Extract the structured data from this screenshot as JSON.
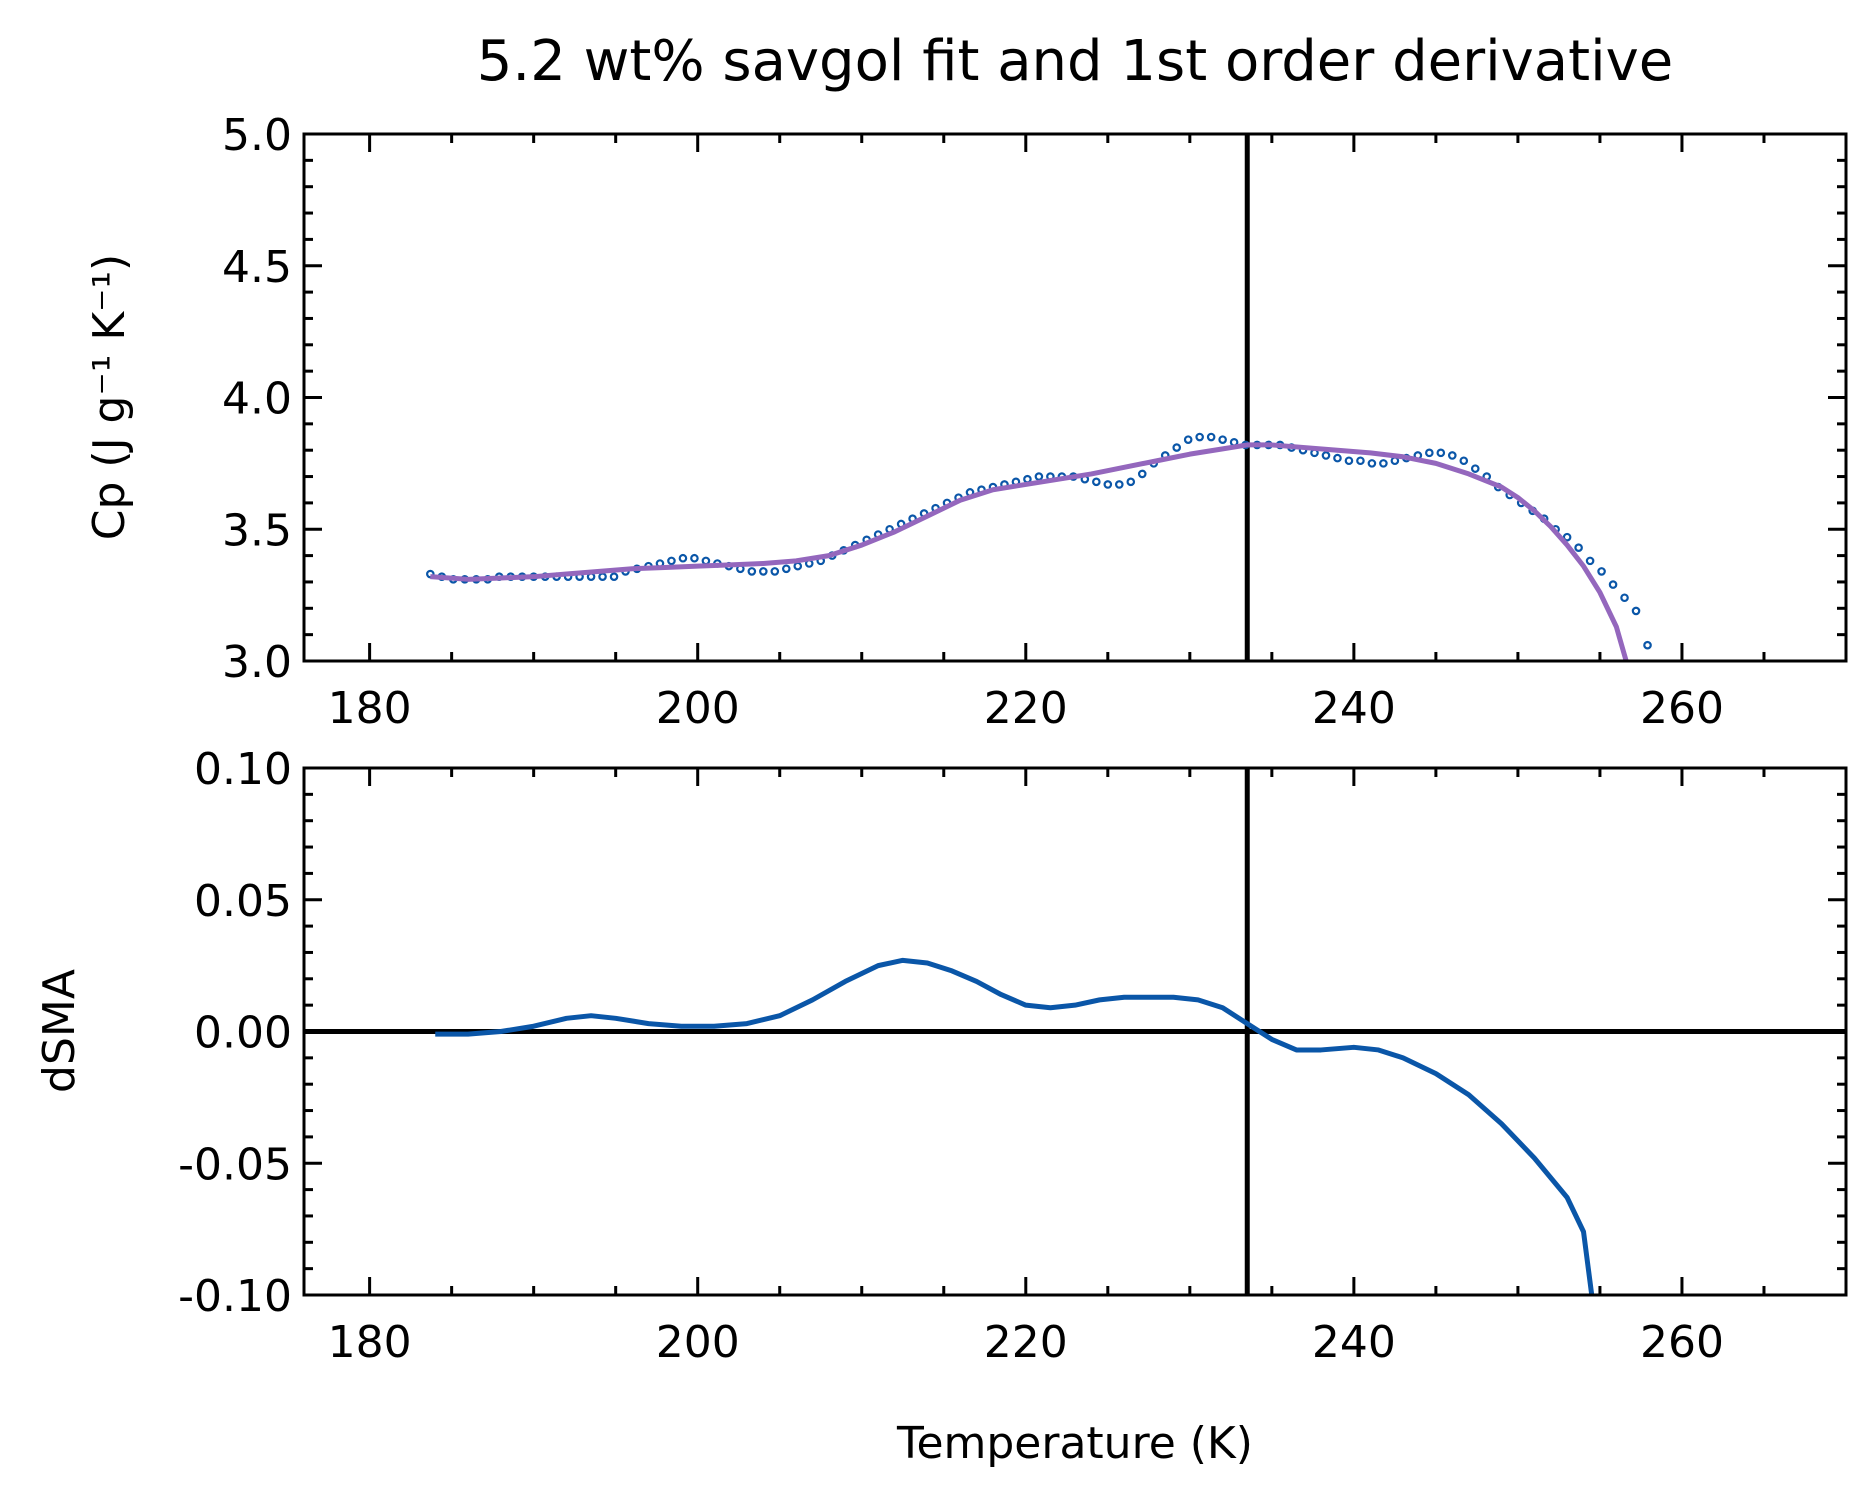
{
  "title": "5.2 wt% savgol fit and 1st order derivative",
  "colors": {
    "data_points": "#0a56a8",
    "fit_line": "#9467bd",
    "derivative_line": "#0a56a8",
    "reference_lines": "#000000"
  },
  "chart_data": [
    {
      "id": "top",
      "type": "scatter+line",
      "ylabel": "Cp (J g⁻¹ K⁻¹)",
      "xlim": [
        176,
        270
      ],
      "ylim": [
        3.0,
        5.0
      ],
      "xticks": [
        180,
        200,
        220,
        240,
        260
      ],
      "xtick_labels": [
        "180",
        "200",
        "220",
        "240",
        "260"
      ],
      "yticks": [
        3.0,
        3.5,
        4.0,
        4.5,
        5.0
      ],
      "ytick_labels": [
        "3.0",
        "3.5",
        "4.0",
        "4.5",
        "5.0"
      ],
      "vline_x": 233.5,
      "scatter": {
        "x": [
          183.7,
          184.4,
          185.1,
          185.8,
          186.5,
          187.2,
          187.9,
          188.6,
          189.3,
          190.0,
          190.7,
          191.4,
          192.1,
          192.8,
          193.5,
          194.2,
          194.9,
          195.6,
          196.3,
          197.0,
          197.7,
          198.4,
          199.1,
          199.8,
          200.5,
          201.2,
          201.9,
          202.6,
          203.3,
          204.0,
          204.7,
          205.4,
          206.1,
          206.8,
          207.5,
          208.2,
          208.9,
          209.6,
          210.3,
          211.0,
          211.7,
          212.4,
          213.1,
          213.8,
          214.5,
          215.2,
          215.9,
          216.6,
          217.3,
          218.0,
          218.7,
          219.4,
          220.1,
          220.8,
          221.5,
          222.2,
          222.9,
          223.6,
          224.3,
          225.0,
          225.7,
          226.4,
          227.1,
          227.8,
          228.5,
          229.2,
          229.9,
          230.6,
          231.3,
          232.0,
          232.7,
          233.4,
          234.1,
          234.8,
          235.5,
          236.2,
          236.9,
          237.6,
          238.3,
          239.0,
          239.7,
          240.4,
          241.1,
          241.8,
          242.5,
          243.2,
          243.9,
          244.6,
          245.3,
          246.0,
          246.7,
          247.4,
          248.1,
          248.8,
          249.5,
          250.2,
          250.9,
          251.6,
          252.3,
          253.0,
          253.7,
          254.4,
          255.1,
          255.8,
          256.5,
          257.2,
          257.9
        ],
        "y": [
          3.33,
          3.32,
          3.31,
          3.31,
          3.31,
          3.31,
          3.32,
          3.32,
          3.32,
          3.32,
          3.32,
          3.32,
          3.32,
          3.32,
          3.32,
          3.32,
          3.32,
          3.34,
          3.35,
          3.36,
          3.37,
          3.38,
          3.39,
          3.39,
          3.38,
          3.37,
          3.36,
          3.35,
          3.34,
          3.34,
          3.34,
          3.35,
          3.36,
          3.37,
          3.38,
          3.4,
          3.42,
          3.44,
          3.46,
          3.48,
          3.5,
          3.52,
          3.54,
          3.56,
          3.58,
          3.6,
          3.62,
          3.64,
          3.65,
          3.66,
          3.67,
          3.68,
          3.69,
          3.7,
          3.7,
          3.7,
          3.7,
          3.69,
          3.68,
          3.67,
          3.67,
          3.68,
          3.71,
          3.75,
          3.78,
          3.81,
          3.84,
          3.85,
          3.85,
          3.84,
          3.83,
          3.82,
          3.82,
          3.82,
          3.82,
          3.81,
          3.8,
          3.79,
          3.78,
          3.77,
          3.76,
          3.76,
          3.75,
          3.75,
          3.76,
          3.77,
          3.78,
          3.79,
          3.79,
          3.78,
          3.76,
          3.73,
          3.7,
          3.66,
          3.63,
          3.6,
          3.57,
          3.54,
          3.5,
          3.47,
          3.43,
          3.38,
          3.34,
          3.29,
          3.24,
          3.19,
          3.06
        ]
      },
      "fit": {
        "x": [
          183.7,
          186,
          188,
          190,
          192,
          194,
          196,
          198,
          200,
          202,
          204,
          206,
          208,
          210,
          212,
          214,
          216,
          218,
          220,
          222,
          224,
          226,
          228,
          230,
          232,
          233.5,
          235,
          237,
          239,
          241,
          243,
          245,
          247,
          249,
          250,
          251,
          252,
          253,
          254,
          255,
          256,
          256.6
        ],
        "y": [
          3.32,
          3.31,
          3.315,
          3.32,
          3.33,
          3.34,
          3.35,
          3.355,
          3.36,
          3.365,
          3.37,
          3.38,
          3.4,
          3.44,
          3.49,
          3.55,
          3.61,
          3.65,
          3.67,
          3.69,
          3.71,
          3.735,
          3.76,
          3.785,
          3.805,
          3.82,
          3.82,
          3.81,
          3.8,
          3.79,
          3.775,
          3.75,
          3.71,
          3.66,
          3.62,
          3.57,
          3.51,
          3.44,
          3.36,
          3.26,
          3.13,
          3.0
        ]
      }
    },
    {
      "id": "bottom",
      "type": "line",
      "xlabel": "Temperature (K)",
      "ylabel": "dSMA",
      "xlim": [
        176,
        270
      ],
      "ylim": [
        -0.1,
        0.1
      ],
      "xticks": [
        180,
        200,
        220,
        240,
        260
      ],
      "xtick_labels": [
        "180",
        "200",
        "220",
        "240",
        "260"
      ],
      "yticks": [
        -0.1,
        -0.05,
        0.0,
        0.05,
        0.1
      ],
      "ytick_labels": [
        "-0.10",
        "-0.05",
        "0.00",
        "0.05",
        "0.10"
      ],
      "vline_x": 233.5,
      "hline_y": 0.0,
      "series": {
        "x": [
          184,
          186,
          188,
          190,
          192,
          193.5,
          195,
          197,
          199,
          201,
          203,
          205,
          207,
          209,
          210,
          211,
          212.5,
          214,
          215.5,
          217,
          218.5,
          220,
          221.5,
          223,
          224.5,
          226,
          227.5,
          229,
          230.5,
          232,
          233.5,
          235,
          236.5,
          238,
          240,
          241.5,
          243,
          245,
          247,
          249,
          251,
          253,
          254,
          254.5
        ],
        "y": [
          -0.001,
          -0.001,
          0.0,
          0.002,
          0.005,
          0.006,
          0.005,
          0.003,
          0.002,
          0.002,
          0.003,
          0.006,
          0.012,
          0.019,
          0.022,
          0.025,
          0.027,
          0.026,
          0.023,
          0.019,
          0.014,
          0.01,
          0.009,
          0.01,
          0.012,
          0.013,
          0.013,
          0.013,
          0.012,
          0.009,
          0.003,
          -0.003,
          -0.007,
          -0.007,
          -0.006,
          -0.007,
          -0.01,
          -0.016,
          -0.024,
          -0.035,
          -0.048,
          -0.063,
          -0.076,
          -0.1
        ]
      }
    }
  ]
}
